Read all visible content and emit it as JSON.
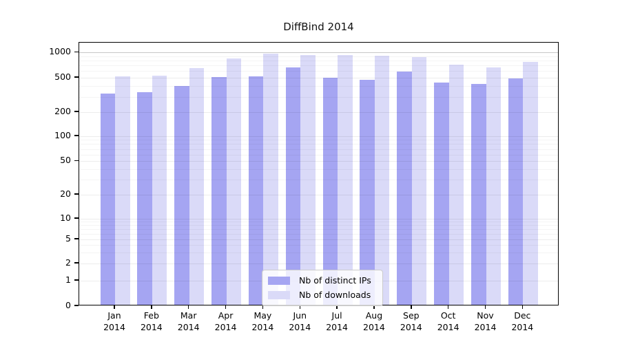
{
  "title": "DiffBind 2014",
  "legend": {
    "items": [
      "Nb of distinct IPs",
      "Nb of downloads"
    ]
  },
  "chart_data": {
    "type": "bar",
    "title": "DiffBind 2014",
    "months": [
      "Jan",
      "Feb",
      "Mar",
      "Apr",
      "May",
      "Jun",
      "Jul",
      "Aug",
      "Sep",
      "Oct",
      "Nov",
      "Dec"
    ],
    "year": "2014",
    "series": [
      {
        "name": "Nb of distinct IPs",
        "color": "#a5a5f2",
        "values": [
          320,
          332,
          390,
          495,
          505,
          645,
          487,
          465,
          580,
          428,
          417,
          480
        ]
      },
      {
        "name": "Nb of downloads",
        "color": "#dadaf8",
        "values": [
          510,
          512,
          630,
          825,
          950,
          915,
          908,
          895,
          862,
          700,
          652,
          760
        ]
      }
    ],
    "y_axis": {
      "scale": "log",
      "tick_values": [
        0,
        1,
        2,
        5,
        10,
        20,
        50,
        100,
        200,
        500,
        1000
      ],
      "tick_labels": [
        "0",
        "1",
        "2",
        "5",
        "10",
        "20",
        "50",
        "100",
        "200",
        "500",
        "1000"
      ]
    },
    "x_axis_label_format": "month-over-year",
    "grid": true,
    "legend_position": "bottom-center",
    "ylim": [
      0,
      1100
    ]
  }
}
